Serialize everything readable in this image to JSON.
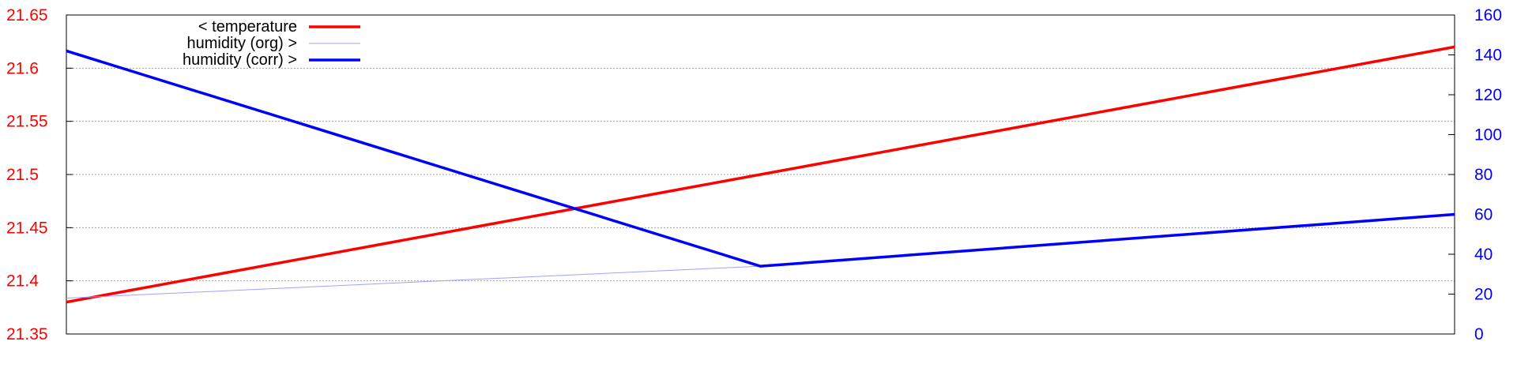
{
  "chart_data": {
    "type": "line",
    "title": "",
    "xlabel": "",
    "ylabel_left": "",
    "ylabel_right": "",
    "x": [
      0,
      1,
      2
    ],
    "y_left": {
      "lim": [
        21.35,
        21.65
      ],
      "ticks": [
        21.35,
        21.4,
        21.45,
        21.5,
        21.55,
        21.6,
        21.65
      ],
      "tick_labels": [
        "21.35",
        "21.4",
        "21.45",
        "21.5",
        "21.55",
        "21.6",
        "21.65"
      ],
      "color": "#ff0000"
    },
    "y_right": {
      "lim": [
        0,
        160
      ],
      "ticks": [
        0,
        20,
        40,
        60,
        80,
        100,
        120,
        140,
        160
      ],
      "tick_labels": [
        "0",
        "20",
        "40",
        "60",
        "80",
        "100",
        "120",
        "140",
        "160"
      ],
      "color": "#0000ff"
    },
    "grid": true,
    "legend_position": "top-left",
    "series": [
      {
        "name": "< temperature",
        "axis": "left",
        "values": [
          21.38,
          21.5,
          21.62
        ],
        "color": "#ff0000",
        "style": "thick"
      },
      {
        "name": "humidity (org) >",
        "axis": "right",
        "values": [
          18,
          34,
          60
        ],
        "color": "#a0a0ff",
        "style": "thin"
      },
      {
        "name": "humidity (corr) >",
        "axis": "right",
        "values": [
          142,
          34,
          60
        ],
        "color": "#0000ff",
        "style": "thick"
      }
    ]
  }
}
